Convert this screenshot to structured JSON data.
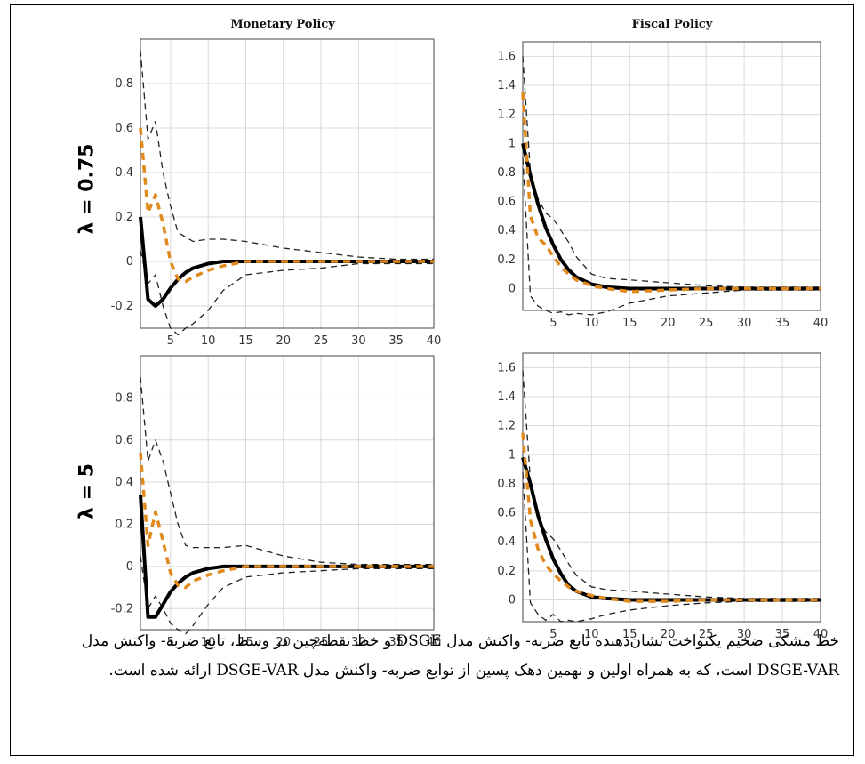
{
  "column_titles": [
    "Monetary Policy",
    "Fiscal Policy"
  ],
  "row_labels": [
    "λ = 0.75",
    "λ = 5"
  ],
  "caption": "خط مشکی ضخیم یکنواخت نشان‌دهنده تابع ضربه- واکنش مدل DSGE و خط نقطه‌چین در وسط، تابع ضربه- واکنش مدل DSGE-VAR است، که به همراه اولین و نهمین دهک پسین از توابع ضربه- واکنش مدل DSGE-VAR ارائه شده است.",
  "colors": {
    "dsge": "#000000",
    "dsge_var": "#e08a1e",
    "bands": "#222222",
    "grid": "#d9d9d9"
  },
  "chart_data": [
    {
      "type": "line",
      "panel": "monetary-lambda-0.75",
      "title": "Monetary Policy",
      "xlim": [
        1,
        40
      ],
      "ylim": [
        -0.3,
        1.0
      ],
      "xticks": [
        5,
        10,
        15,
        20,
        25,
        30,
        35,
        40
      ],
      "yticks": [
        -0.2,
        0,
        0.2,
        0.4,
        0.6,
        0.8
      ],
      "grid": true,
      "series": [
        {
          "role": "dsge",
          "x": [
            1,
            2,
            3,
            4,
            5,
            6,
            7,
            8,
            10,
            12,
            15,
            20,
            25,
            30,
            35,
            40
          ],
          "y": [
            0.2,
            -0.17,
            -0.2,
            -0.17,
            -0.12,
            -0.08,
            -0.05,
            -0.03,
            -0.01,
            0,
            0,
            0,
            0,
            0,
            0,
            0
          ]
        },
        {
          "role": "dsge_var",
          "x": [
            1,
            2,
            3,
            4,
            5,
            6,
            7,
            8,
            10,
            12,
            15,
            20,
            25,
            30,
            35,
            40
          ],
          "y": [
            0.6,
            0.22,
            0.3,
            0.17,
            0.0,
            -0.08,
            -0.09,
            -0.07,
            -0.04,
            -0.02,
            0,
            0,
            0,
            0,
            0,
            0
          ]
        },
        {
          "role": "upper",
          "x": [
            1,
            2,
            3,
            4,
            5,
            6,
            7,
            8,
            10,
            12,
            15,
            20,
            25,
            30,
            35,
            40
          ],
          "y": [
            0.95,
            0.55,
            0.63,
            0.4,
            0.25,
            0.13,
            0.11,
            0.09,
            0.1,
            0.1,
            0.09,
            0.06,
            0.04,
            0.02,
            0.01,
            0.01
          ]
        },
        {
          "role": "lower",
          "x": [
            1,
            2,
            3,
            4,
            5,
            6,
            7,
            8,
            10,
            12,
            15,
            20,
            25,
            30,
            35,
            40
          ],
          "y": [
            0.05,
            -0.1,
            -0.06,
            -0.2,
            -0.3,
            -0.33,
            -0.3,
            -0.28,
            -0.22,
            -0.13,
            -0.06,
            -0.04,
            -0.03,
            -0.01,
            -0.01,
            -0.01
          ]
        }
      ]
    },
    {
      "type": "line",
      "panel": "fiscal-lambda-0.75",
      "title": "Fiscal Policy",
      "xlim": [
        1,
        40
      ],
      "ylim": [
        -0.15,
        1.7
      ],
      "xticks": [
        5,
        10,
        15,
        20,
        25,
        30,
        35,
        40
      ],
      "yticks": [
        0,
        0.2,
        0.4,
        0.6,
        0.8,
        1,
        1.2,
        1.4,
        1.6
      ],
      "grid": true,
      "series": [
        {
          "role": "dsge",
          "x": [
            1,
            2,
            3,
            4,
            5,
            6,
            7,
            8,
            10,
            12,
            15,
            20,
            25,
            30,
            35,
            40
          ],
          "y": [
            1.0,
            0.78,
            0.58,
            0.42,
            0.3,
            0.2,
            0.13,
            0.08,
            0.03,
            0.01,
            0,
            0,
            0,
            0,
            0,
            0
          ]
        },
        {
          "role": "dsge_var",
          "x": [
            1,
            2,
            3,
            4,
            5,
            6,
            7,
            8,
            10,
            12,
            15,
            20,
            25,
            30,
            35,
            40
          ],
          "y": [
            1.35,
            0.5,
            0.35,
            0.3,
            0.22,
            0.15,
            0.1,
            0.06,
            0.02,
            0.0,
            -0.02,
            -0.01,
            0,
            0,
            0,
            0
          ]
        },
        {
          "role": "upper",
          "x": [
            1,
            2,
            3,
            4,
            5,
            6,
            7,
            8,
            10,
            12,
            15,
            20,
            25,
            30,
            35,
            40
          ],
          "y": [
            1.6,
            0.8,
            0.62,
            0.52,
            0.48,
            0.4,
            0.32,
            0.22,
            0.1,
            0.07,
            0.06,
            0.04,
            0.02,
            0.01,
            0.01,
            0.01
          ]
        },
        {
          "role": "lower",
          "x": [
            1,
            2,
            3,
            4,
            5,
            6,
            7,
            8,
            10,
            12,
            15,
            20,
            25,
            30,
            35,
            40
          ],
          "y": [
            0.9,
            -0.05,
            -0.12,
            -0.15,
            -0.17,
            -0.16,
            -0.18,
            -0.17,
            -0.18,
            -0.16,
            -0.1,
            -0.05,
            -0.03,
            -0.01,
            -0.01,
            -0.01
          ]
        }
      ]
    },
    {
      "type": "line",
      "panel": "monetary-lambda-5",
      "title": "",
      "xlim": [
        1,
        40
      ],
      "ylim": [
        -0.3,
        1.0
      ],
      "xticks": [
        5,
        10,
        15,
        20,
        25,
        30,
        35,
        40
      ],
      "yticks": [
        -0.2,
        0,
        0.2,
        0.4,
        0.6,
        0.8
      ],
      "grid": true,
      "series": [
        {
          "role": "dsge",
          "x": [
            1,
            2,
            3,
            4,
            5,
            6,
            7,
            8,
            10,
            12,
            15,
            20,
            25,
            30,
            35,
            40
          ],
          "y": [
            0.34,
            -0.24,
            -0.24,
            -0.18,
            -0.12,
            -0.08,
            -0.05,
            -0.03,
            -0.01,
            0,
            0,
            0,
            0,
            0,
            0,
            0
          ]
        },
        {
          "role": "dsge_var",
          "x": [
            1,
            2,
            3,
            4,
            5,
            6,
            7,
            8,
            10,
            12,
            15,
            20,
            25,
            30,
            35,
            40
          ],
          "y": [
            0.54,
            0.1,
            0.26,
            0.12,
            -0.03,
            -0.09,
            -0.1,
            -0.07,
            -0.04,
            -0.02,
            0,
            0,
            0,
            0,
            0,
            0
          ]
        },
        {
          "role": "upper",
          "x": [
            1,
            2,
            3,
            4,
            5,
            6,
            7,
            8,
            10,
            12,
            15,
            20,
            25,
            30,
            35,
            40
          ],
          "y": [
            0.9,
            0.5,
            0.6,
            0.5,
            0.35,
            0.2,
            0.1,
            0.09,
            0.09,
            0.09,
            0.1,
            0.05,
            0.02,
            0.01,
            0.01,
            0.01
          ]
        },
        {
          "role": "lower",
          "x": [
            1,
            2,
            3,
            4,
            5,
            6,
            7,
            8,
            10,
            12,
            15,
            20,
            25,
            30,
            35,
            40
          ],
          "y": [
            0.05,
            -0.2,
            -0.14,
            -0.2,
            -0.27,
            -0.3,
            -0.32,
            -0.28,
            -0.18,
            -0.1,
            -0.05,
            -0.03,
            -0.02,
            -0.01,
            -0.01,
            -0.01
          ]
        }
      ]
    },
    {
      "type": "line",
      "panel": "fiscal-lambda-5",
      "title": "",
      "xlim": [
        1,
        40
      ],
      "ylim": [
        -0.15,
        1.7
      ],
      "xticks": [
        5,
        10,
        15,
        20,
        25,
        30,
        35,
        40
      ],
      "yticks": [
        0,
        0.2,
        0.4,
        0.6,
        0.8,
        1,
        1.2,
        1.4,
        1.6
      ],
      "grid": true,
      "series": [
        {
          "role": "dsge",
          "x": [
            1,
            2,
            3,
            4,
            5,
            6,
            7,
            8,
            10,
            12,
            15,
            20,
            25,
            30,
            35,
            40
          ],
          "y": [
            0.98,
            0.8,
            0.58,
            0.42,
            0.28,
            0.18,
            0.1,
            0.06,
            0.02,
            0.01,
            0,
            0,
            0,
            0,
            0,
            0
          ]
        },
        {
          "role": "dsge_var",
          "x": [
            1,
            2,
            3,
            4,
            5,
            6,
            7,
            8,
            10,
            12,
            15,
            20,
            25,
            30,
            35,
            40
          ],
          "y": [
            1.15,
            0.55,
            0.35,
            0.24,
            0.18,
            0.13,
            0.09,
            0.06,
            0.03,
            0.01,
            -0.01,
            -0.01,
            0,
            0,
            0,
            0
          ]
        },
        {
          "role": "upper",
          "x": [
            1,
            2,
            3,
            4,
            5,
            6,
            7,
            8,
            10,
            12,
            15,
            20,
            25,
            30,
            35,
            40
          ],
          "y": [
            1.58,
            0.82,
            0.55,
            0.47,
            0.42,
            0.34,
            0.25,
            0.17,
            0.09,
            0.07,
            0.06,
            0.04,
            0.02,
            0.01,
            0.01,
            0.01
          ]
        },
        {
          "role": "lower",
          "x": [
            1,
            2,
            3,
            4,
            5,
            6,
            7,
            8,
            10,
            12,
            15,
            20,
            25,
            30,
            35,
            40
          ],
          "y": [
            0.88,
            -0.02,
            -0.1,
            -0.14,
            -0.1,
            -0.15,
            -0.14,
            -0.15,
            -0.13,
            -0.1,
            -0.07,
            -0.04,
            -0.02,
            -0.01,
            -0.01,
            -0.01
          ]
        }
      ]
    }
  ]
}
